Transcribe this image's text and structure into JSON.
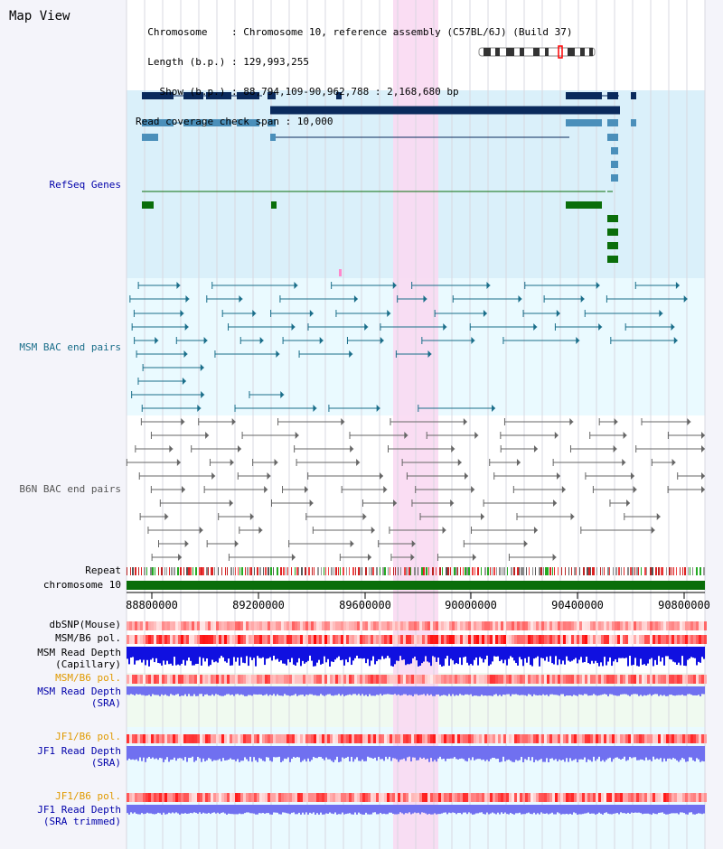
{
  "view": {
    "title": "Map View",
    "info_lines": [
      "  Chromosome    : Chromosome 10, reference assembly (C57BL/6J) (Build 37)",
      "  Length (b.p.) : 129,993,255",
      "    Show (b.p.) : 88,794,109-90,962,788 : 2,168,680 bp",
      "Read coverage check span : 10,000"
    ]
  },
  "tracks": {
    "refseq": "RefSeq Genes",
    "msm_bac": "MSM BAC end pairs",
    "b6n_bac": "B6N BAC end pairs",
    "repeat": "Repeat",
    "chromosome": "chromosome 10",
    "dbsnp": "dbSNP(Mouse)",
    "msm_b6_pol_1": "MSM/B6 pol.",
    "msm_read_depth_cap_1": "MSM Read Depth",
    "msm_read_depth_cap_2": "(Capillary)",
    "msm_b6_pol_2": "MSM/B6 pol.",
    "msm_read_depth_sra_1": "MSM Read Depth",
    "msm_read_depth_sra_2": "(SRA)",
    "jf1_b6_pol_1": "JF1/B6 pol.",
    "jf1_read_depth_sra_1": "JF1 Read Depth",
    "jf1_read_depth_sra_2": "(SRA)",
    "jf1_b6_pol_2": "JF1/B6 pol.",
    "jf1_read_depth_trim_1": "JF1 Read Depth",
    "jf1_read_depth_trim_2": "(SRA trimmed)"
  },
  "axis": {
    "ticks": [
      "88800000",
      "89200000",
      "89600000",
      "90000000",
      "90400000",
      "90800000"
    ]
  },
  "colors": {
    "refseq_bg": "#daf0fa",
    "bac_bg": "#eafaff",
    "highlight": "#f9d9f2",
    "gene_dark": "#0a2a5c",
    "gene_mid": "#4a8fba",
    "gene_green": "#0a6e0a",
    "msm_pair": "#1a6e8a",
    "b6n_pair": "#666666",
    "chromosome_bar": "#0a6e0a",
    "snp": "#ff7070",
    "depth_blue": "#1010e0",
    "depth_sra": "#7070f0",
    "label_blue": "#0000aa",
    "label_teal": "#1a6e8a",
    "label_orange": "#e09a00"
  }
}
